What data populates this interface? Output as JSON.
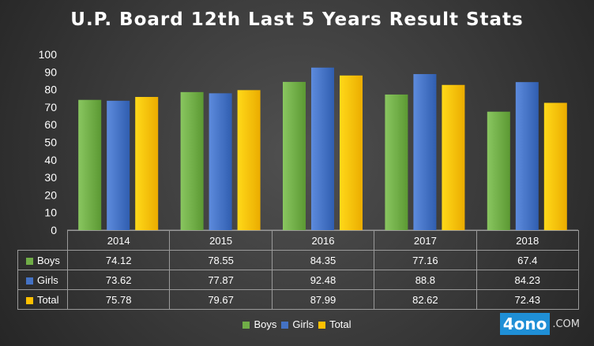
{
  "title": "U.P. Board 12th Last 5 Years Result Stats",
  "chart_data": {
    "type": "bar",
    "categories": [
      "2014",
      "2015",
      "2016",
      "2017",
      "2018"
    ],
    "series": [
      {
        "name": "Boys",
        "color": "#70ad47",
        "values": [
          74.12,
          78.55,
          84.35,
          77.16,
          67.4
        ],
        "labels": [
          "74.12",
          "78.55",
          "84.35",
          "77.16",
          "67.4"
        ]
      },
      {
        "name": "Girls",
        "color": "#4472c4",
        "values": [
          73.62,
          77.87,
          92.48,
          88.8,
          84.23
        ],
        "labels": [
          "73.62",
          "77.87",
          "92.48",
          "88.8",
          "84.23"
        ]
      },
      {
        "name": "Total",
        "color": "#ffc000",
        "values": [
          75.78,
          79.67,
          87.99,
          82.62,
          72.43
        ],
        "labels": [
          "75.78",
          "79.67",
          "87.99",
          "82.62",
          "72.43"
        ]
      }
    ],
    "ylim": [
      0,
      100
    ],
    "yticks": [
      "0",
      "10",
      "20",
      "30",
      "40",
      "50",
      "60",
      "70",
      "80",
      "90",
      "100"
    ],
    "grid": false,
    "legend_position": "bottom",
    "data_table": true
  },
  "watermark": {
    "logo_mark": "4ono",
    "logo_suffix": ".COM"
  }
}
